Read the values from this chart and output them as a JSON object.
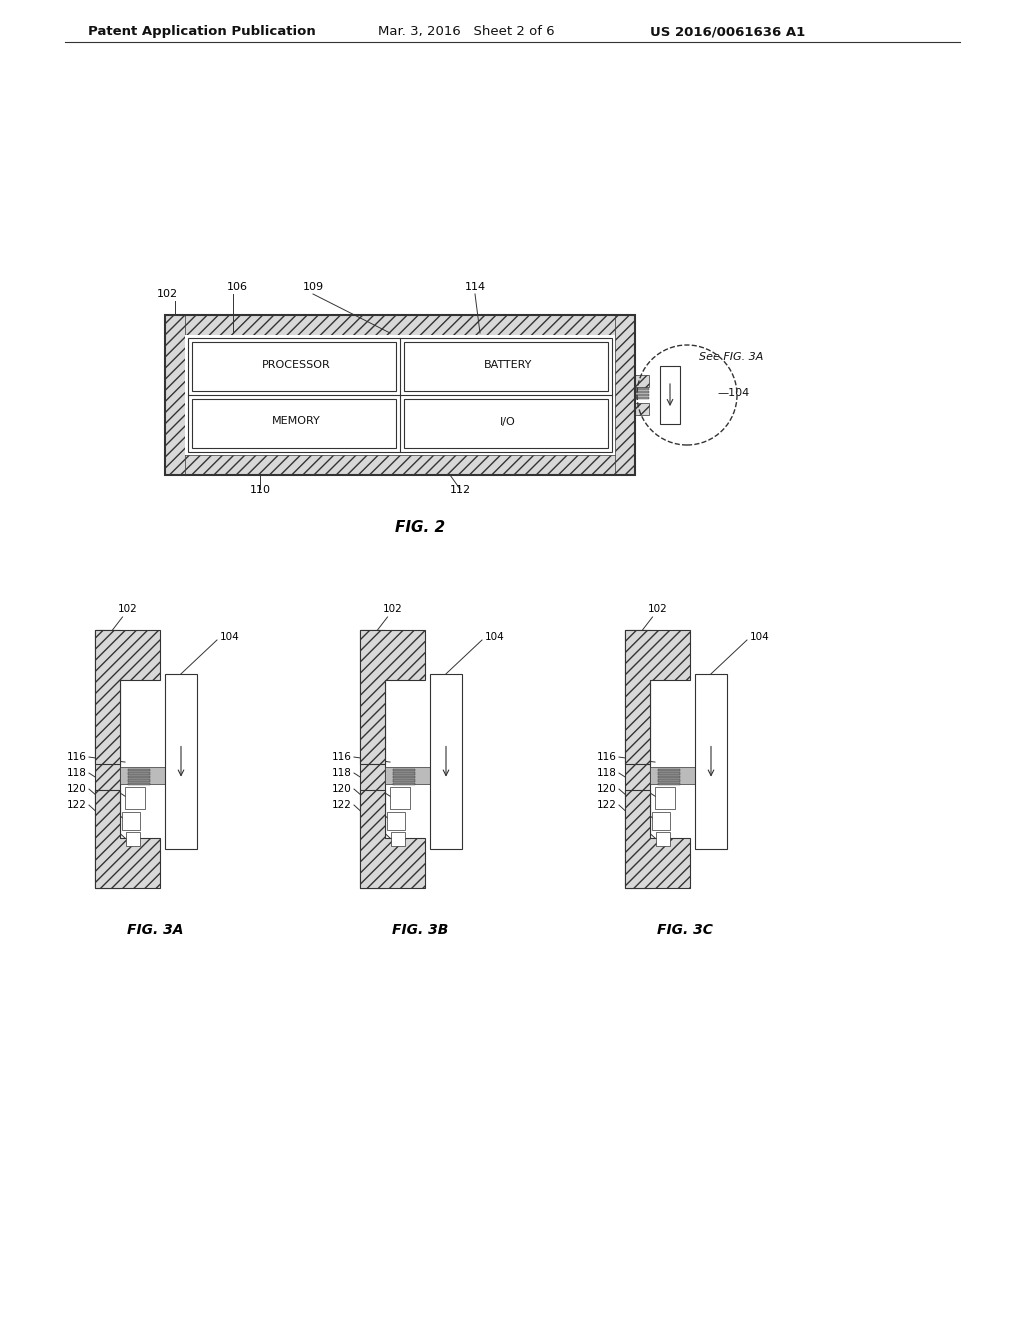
{
  "bg_color": "#ffffff",
  "header_text_left": "Patent Application Publication",
  "header_text_mid": "Mar. 3, 2016   Sheet 2 of 6",
  "header_text_right": "US 2016/0061636 A1",
  "fig2_label": "FIG. 2",
  "fig3a_label": "FIG. 3A",
  "fig3b_label": "FIG. 3B",
  "fig3c_label": "FIG. 3C",
  "line_color": "#333333"
}
